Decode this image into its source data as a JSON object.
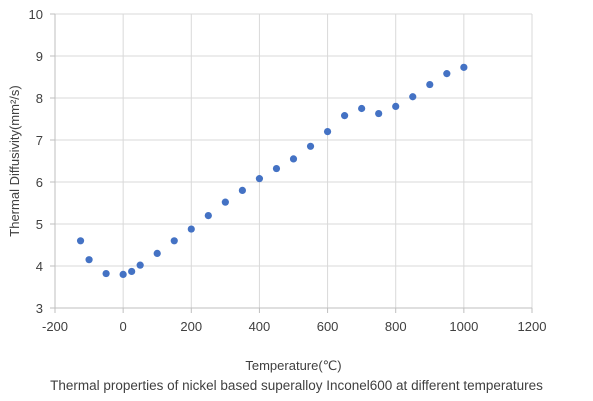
{
  "chart_data": {
    "type": "scatter",
    "title": "",
    "xlabel": "Temperature(℃)",
    "ylabel": "Thermal Diffusivity(mm²/s)",
    "xlim": [
      -200,
      1200
    ],
    "ylim": [
      3,
      10
    ],
    "xticks": [
      -200,
      0,
      200,
      400,
      600,
      800,
      1000,
      1200
    ],
    "yticks": [
      3,
      4,
      5,
      6,
      7,
      8,
      9,
      10
    ],
    "grid": true,
    "legend": "none",
    "marker_color": "#4472C4",
    "series": [
      {
        "x": [
          -125,
          -100,
          -50,
          0,
          25,
          50,
          100,
          150,
          200,
          250,
          300,
          350,
          400,
          450,
          500,
          550,
          600,
          650,
          700,
          750,
          800,
          850,
          900,
          950,
          1000
        ],
        "y": [
          4.6,
          4.15,
          3.82,
          3.8,
          3.87,
          4.02,
          4.3,
          4.6,
          4.88,
          5.2,
          5.52,
          5.8,
          6.08,
          6.32,
          6.55,
          6.85,
          7.2,
          7.58,
          7.75,
          7.63,
          7.8,
          8.03,
          8.32,
          8.58,
          8.73
        ]
      }
    ]
  },
  "caption": "Thermal properties of nickel based superalloy Inconel600 at different temperatures"
}
